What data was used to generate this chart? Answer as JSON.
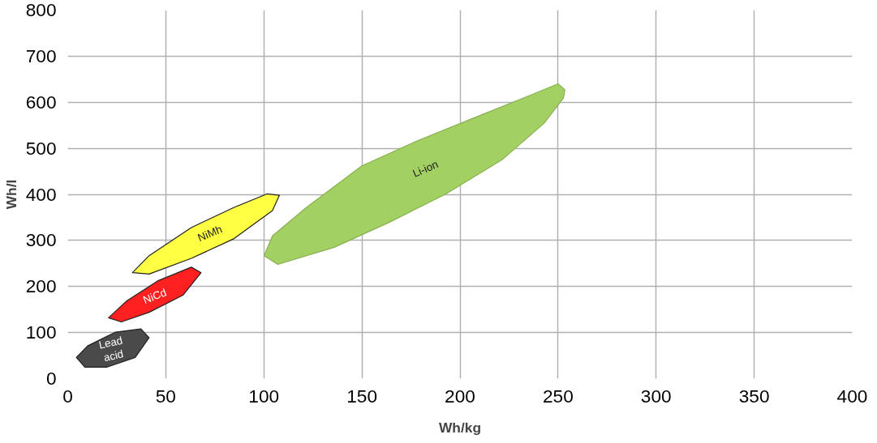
{
  "chart_data": {
    "type": "area",
    "xlabel": "Wh/kg",
    "ylabel": "Wh/l",
    "xlim": [
      0,
      400
    ],
    "ylim": [
      0,
      800
    ],
    "xticks": [
      0,
      50,
      100,
      150,
      200,
      250,
      300,
      350,
      400
    ],
    "yticks": [
      0,
      100,
      200,
      300,
      400,
      500,
      600,
      700,
      800
    ],
    "grid": true,
    "series": [
      {
        "name": "Lead acid",
        "color": "#4a4a4a",
        "x": [
          4.4,
          10.1,
          24.4,
          37.3,
          41.5,
          34.4,
          20.1,
          8.7
        ],
        "values": [
          46,
          71,
          101,
          108,
          89,
          46,
          25,
          25
        ]
      },
      {
        "name": "NiCd",
        "color": "#ff2020",
        "x": [
          20.8,
          30.1,
          45.8,
          63,
          68,
          58.7,
          41.5,
          27.3
        ],
        "values": [
          132,
          169,
          212,
          242,
          230,
          181,
          144,
          123
        ]
      },
      {
        "name": "NiMh",
        "color": "#ffff44",
        "x": [
          33,
          41.5,
          63,
          84.4,
          101.5,
          107.9,
          104.4,
          84.4,
          63,
          41.5
        ],
        "values": [
          230,
          267,
          328,
          371,
          401,
          398,
          365,
          303,
          261,
          227
        ]
      },
      {
        "name": "Li-ion",
        "color": "#a3d063",
        "x": [
          100.1,
          104.4,
          121.5,
          150,
          178.6,
          207.1,
          235.7,
          250,
          253.5,
          252.7,
          242.8,
          221.4,
          192.8,
          164.3,
          135.8,
          107.1
        ],
        "values": [
          267,
          310,
          371,
          462,
          517,
          566,
          615,
          640,
          627,
          609,
          554,
          475,
          401,
          340,
          285,
          248
        ]
      }
    ]
  }
}
